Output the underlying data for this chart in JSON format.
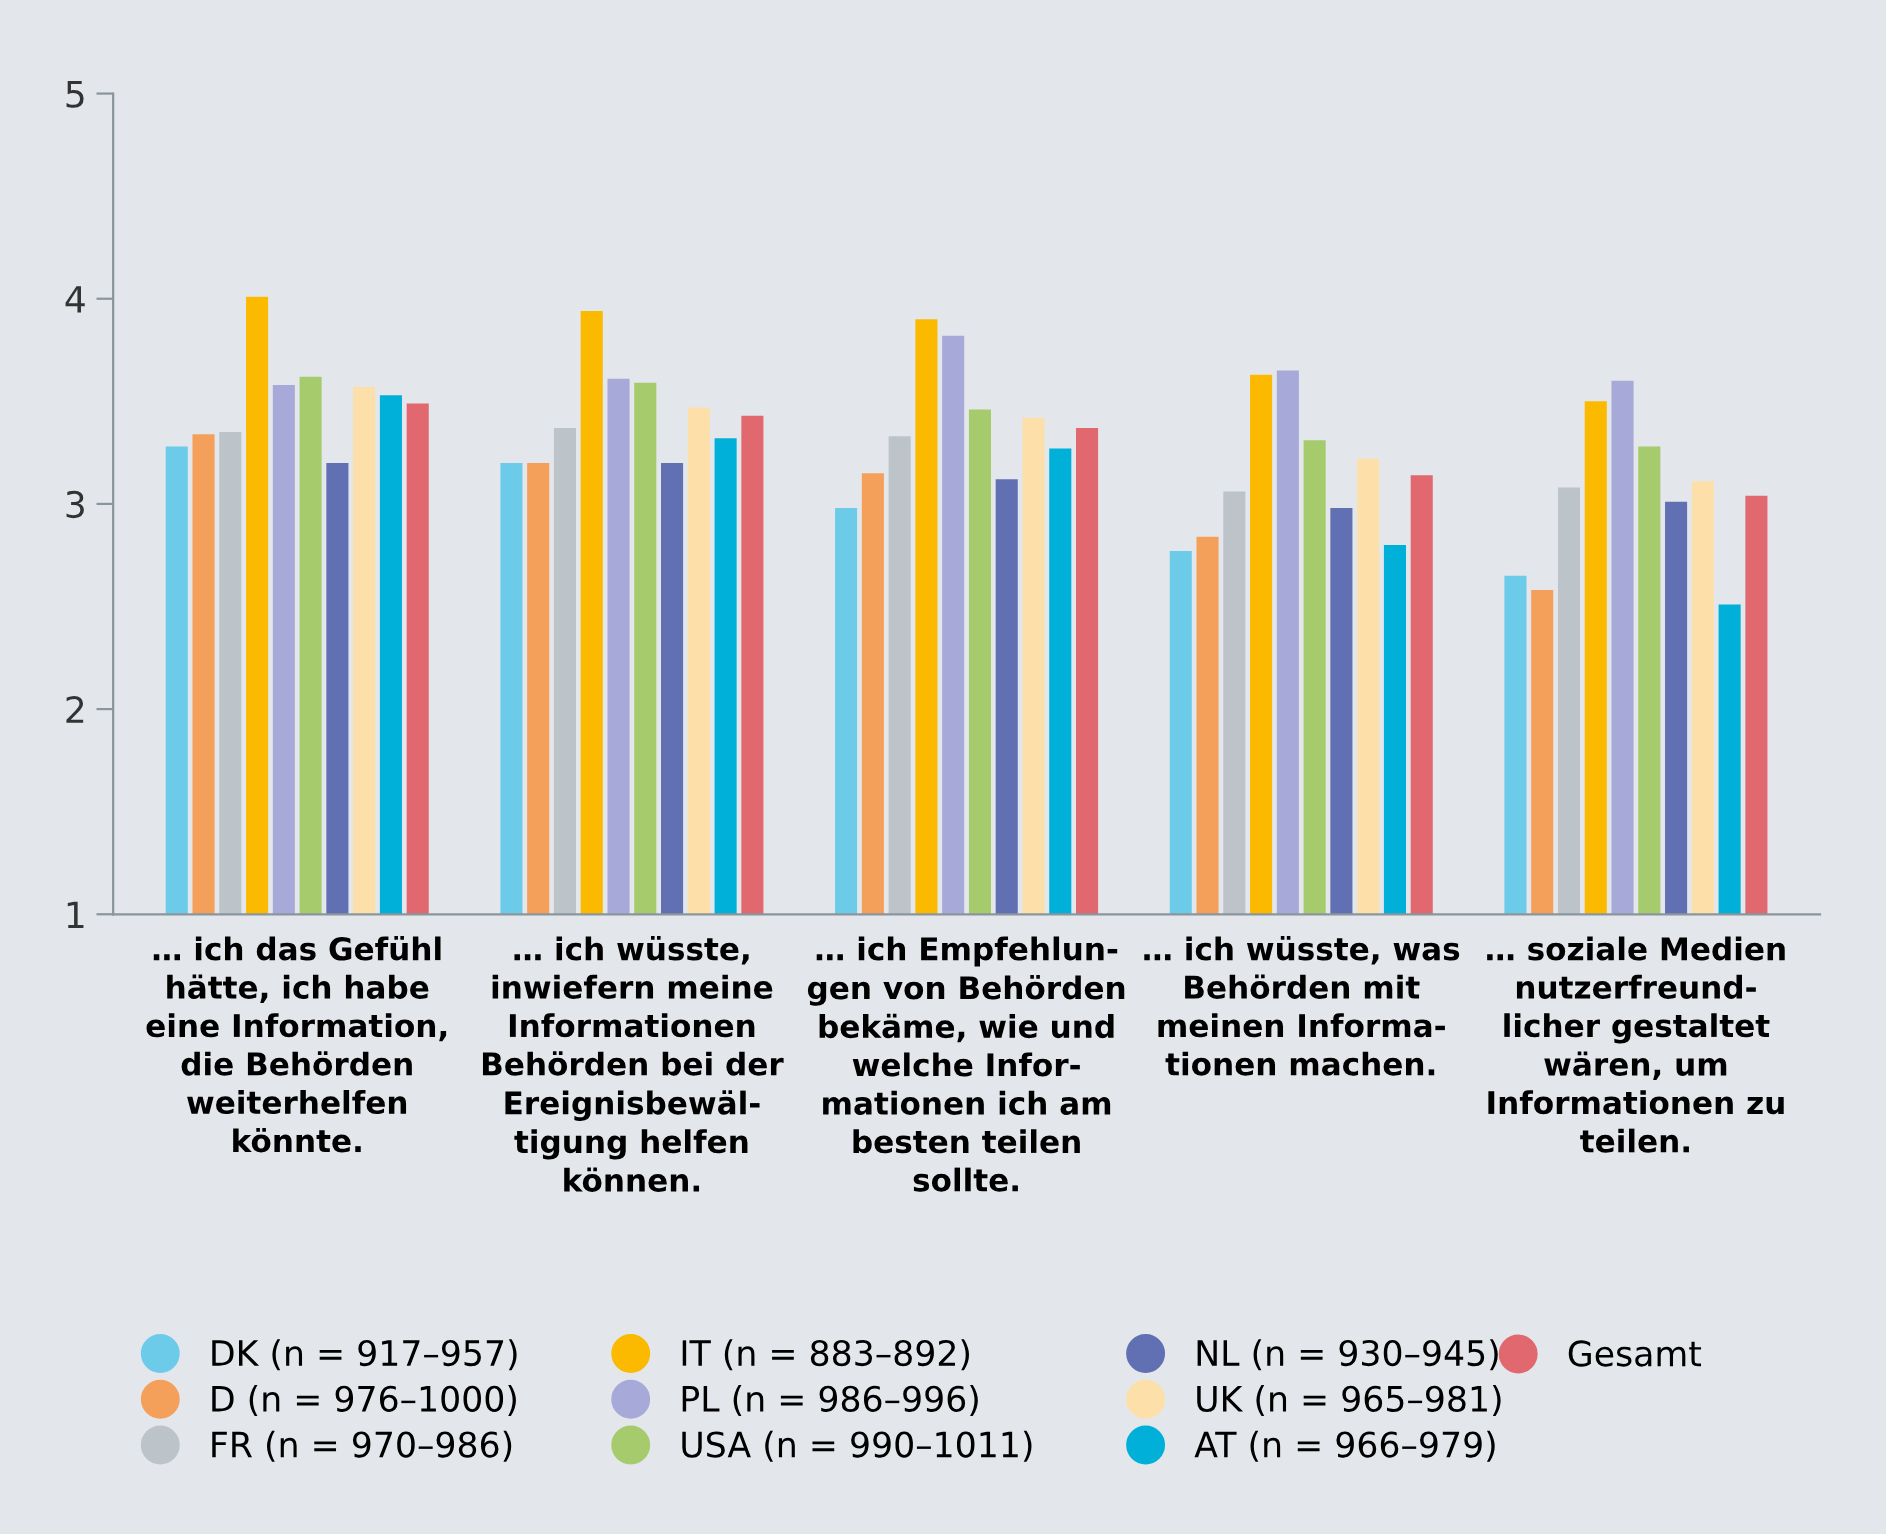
{
  "chart_data": {
    "type": "bar",
    "categories": [
      "… ich das Gefühl\nhätte, ich habe\neine Information,\ndie Behörden\nweiterhelfen\nkönnte.",
      "… ich wüsste,\ninwiefern meine\nInformationen\nBehörden bei der\nEreignisbewäl-\ntigung helfen\nkönnen.",
      "… ich Empfehlun-\ngen von Behörden\nbekäme, wie und\nwelche Infor-\nmationen ich am\nbesten teilen\nsollte.",
      "… ich wüsste, was\nBehörden mit\nmeinen Informa-\ntionen machen.",
      "… soziale Medien\nnutzerfreund-\nlicher gestaltet\nwären, um\nInformationen zu\nteilen."
    ],
    "series": [
      {
        "name": "DK (n = 917–957)",
        "color": "#6dcbea",
        "values": [
          3.28,
          3.2,
          2.98,
          2.77,
          2.65
        ]
      },
      {
        "name": "D (n = 976–1000)",
        "color": "#f5a05a",
        "values": [
          3.34,
          3.2,
          3.15,
          2.84,
          2.58
        ]
      },
      {
        "name": "FR (n = 970–986)",
        "color": "#bcc4ca",
        "values": [
          3.35,
          3.37,
          3.33,
          3.06,
          3.08
        ]
      },
      {
        "name": "IT (n = 883–892)",
        "color": "#fbba00",
        "values": [
          4.01,
          3.94,
          3.9,
          3.63,
          3.5
        ]
      },
      {
        "name": "PL (n = 986–996)",
        "color": "#a7aad8",
        "values": [
          3.58,
          3.61,
          3.82,
          3.65,
          3.6
        ]
      },
      {
        "name": "USA (n = 990–1011)",
        "color": "#a6cb6c",
        "values": [
          3.62,
          3.59,
          3.46,
          3.31,
          3.28
        ]
      },
      {
        "name": "NL (n = 930–945)",
        "color": "#616fb3",
        "values": [
          3.2,
          3.2,
          3.12,
          2.98,
          3.01
        ]
      },
      {
        "name": "UK (n = 965–981)",
        "color": "#fde0a9",
        "values": [
          3.57,
          3.47,
          3.42,
          3.22,
          3.11
        ]
      },
      {
        "name": "AT (n = 966–979)",
        "color": "#00b0d9",
        "values": [
          3.53,
          3.32,
          3.27,
          2.8,
          2.51
        ]
      },
      {
        "name": "Gesamt",
        "color": "#e0686e",
        "values": [
          3.49,
          3.43,
          3.37,
          3.14,
          3.04
        ]
      }
    ],
    "ylim": [
      1,
      5
    ],
    "yticks": [
      1,
      2,
      3,
      4,
      5
    ],
    "grid": false,
    "legend": "bottom"
  }
}
